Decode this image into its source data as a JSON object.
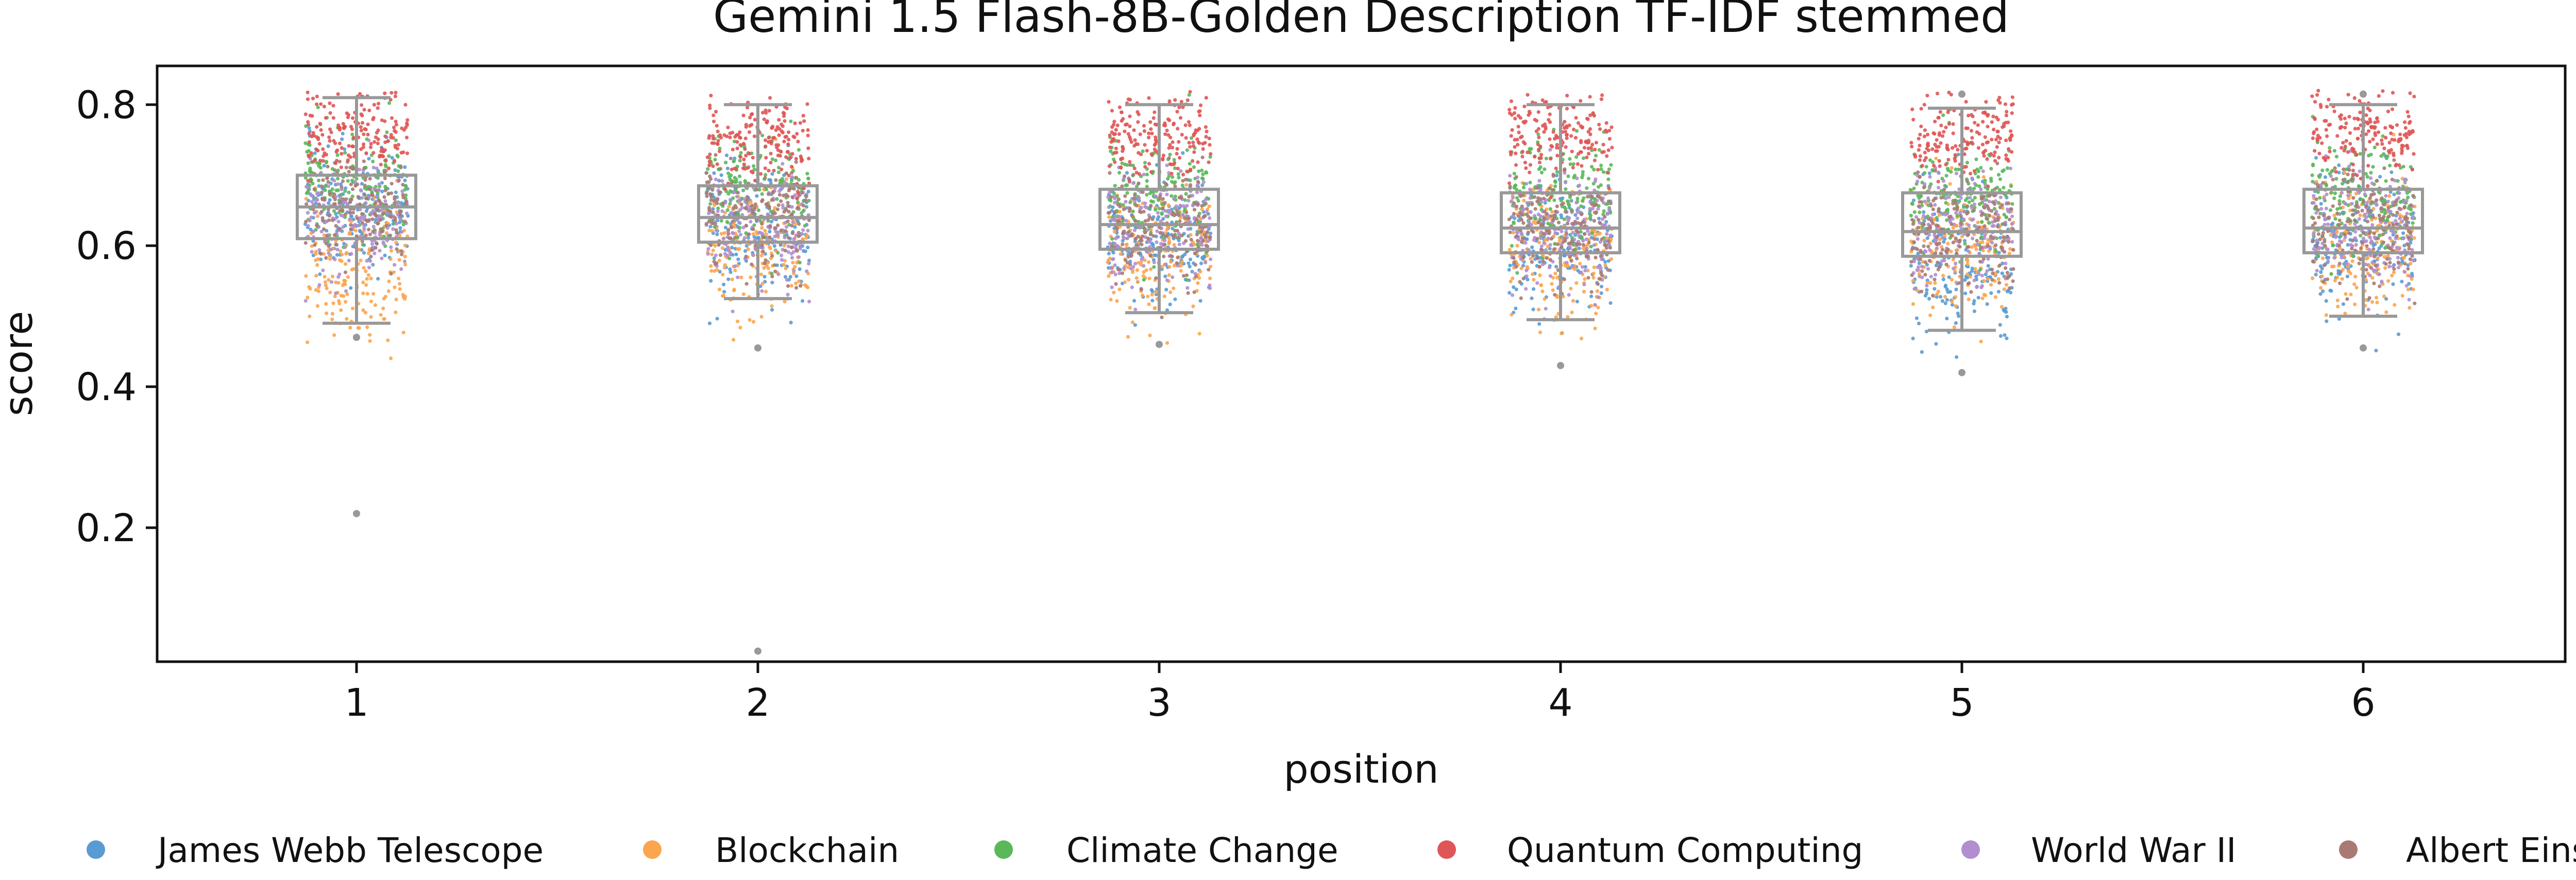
{
  "chart_data": {
    "type": "box-strip",
    "title": "Gemini 1.5 Flash-8B-Golden Description TF-IDF stemmed",
    "xlabel": "position",
    "ylabel": "score",
    "categories": [
      "1",
      "2",
      "3",
      "4",
      "5",
      "6"
    ],
    "ylim": [
      0.01,
      0.855
    ],
    "yticks": [
      "0.2",
      "0.4",
      "0.6",
      "0.8"
    ],
    "grid": false,
    "legend_position": "bottom",
    "box_color": "#999999",
    "series": [
      {
        "name": "James Webb Telescope",
        "color": "#5a9bd4"
      },
      {
        "name": "Blockchain",
        "color": "#fca54e"
      },
      {
        "name": "Climate Change",
        "color": "#5ab85a"
      },
      {
        "name": "Quantum Computing",
        "color": "#e05555"
      },
      {
        "name": "World War II",
        "color": "#b08ed0"
      },
      {
        "name": "Albert Einstein",
        "color": "#a97a73"
      }
    ],
    "boxes": [
      {
        "position": "1",
        "whisker_low": 0.49,
        "q1": 0.61,
        "median": 0.655,
        "q3": 0.7,
        "whisker_high": 0.81,
        "outliers": [
          0.22,
          0.47
        ]
      },
      {
        "position": "2",
        "whisker_low": 0.525,
        "q1": 0.605,
        "median": 0.64,
        "q3": 0.685,
        "whisker_high": 0.8,
        "outliers": [
          0.455,
          0.025
        ]
      },
      {
        "position": "3",
        "whisker_low": 0.505,
        "q1": 0.595,
        "median": 0.63,
        "q3": 0.68,
        "whisker_high": 0.8,
        "outliers": [
          0.46
        ]
      },
      {
        "position": "4",
        "whisker_low": 0.495,
        "q1": 0.59,
        "median": 0.625,
        "q3": 0.675,
        "whisker_high": 0.8,
        "outliers": [
          0.43
        ]
      },
      {
        "position": "5",
        "whisker_low": 0.48,
        "q1": 0.585,
        "median": 0.62,
        "q3": 0.675,
        "whisker_high": 0.795,
        "outliers": [
          0.42,
          0.815
        ]
      },
      {
        "position": "6",
        "whisker_low": 0.5,
        "q1": 0.59,
        "median": 0.625,
        "q3": 0.68,
        "whisker_high": 0.8,
        "outliers": [
          0.455,
          0.815
        ]
      }
    ],
    "point_distributions": {
      "1": {
        "James Webb Telescope": [
          0.65,
          0.045
        ],
        "Blockchain": [
          0.56,
          0.05
        ],
        "Climate Change": [
          0.69,
          0.04
        ],
        "Quantum Computing": [
          0.76,
          0.03
        ],
        "World War II": [
          0.64,
          0.04
        ],
        "Albert Einstein": [
          0.655,
          0.04
        ]
      },
      "2": {
        "James Webb Telescope": [
          0.62,
          0.045
        ],
        "Blockchain": [
          0.6,
          0.045
        ],
        "Climate Change": [
          0.68,
          0.04
        ],
        "Quantum Computing": [
          0.75,
          0.03
        ],
        "World War II": [
          0.63,
          0.04
        ],
        "Albert Einstein": [
          0.64,
          0.04
        ]
      },
      "3": {
        "James Webb Telescope": [
          0.61,
          0.045
        ],
        "Blockchain": [
          0.59,
          0.045
        ],
        "Climate Change": [
          0.67,
          0.04
        ],
        "Quantum Computing": [
          0.755,
          0.03
        ],
        "World War II": [
          0.62,
          0.04
        ],
        "Albert Einstein": [
          0.63,
          0.04
        ]
      },
      "4": {
        "James Webb Telescope": [
          0.6,
          0.05
        ],
        "Blockchain": [
          0.59,
          0.045
        ],
        "Climate Change": [
          0.67,
          0.04
        ],
        "Quantum Computing": [
          0.755,
          0.03
        ],
        "World War II": [
          0.625,
          0.04
        ],
        "Albert Einstein": [
          0.625,
          0.04
        ]
      },
      "5": {
        "James Webb Telescope": [
          0.57,
          0.06
        ],
        "Blockchain": [
          0.595,
          0.045
        ],
        "Climate Change": [
          0.67,
          0.04
        ],
        "Quantum Computing": [
          0.755,
          0.03
        ],
        "World War II": [
          0.62,
          0.04
        ],
        "Albert Einstein": [
          0.62,
          0.04
        ]
      },
      "6": {
        "James Webb Telescope": [
          0.6,
          0.05
        ],
        "Blockchain": [
          0.595,
          0.045
        ],
        "Climate Change": [
          0.67,
          0.04
        ],
        "Quantum Computing": [
          0.76,
          0.03
        ],
        "World War II": [
          0.625,
          0.04
        ],
        "Albert Einstein": [
          0.63,
          0.04
        ]
      }
    }
  }
}
